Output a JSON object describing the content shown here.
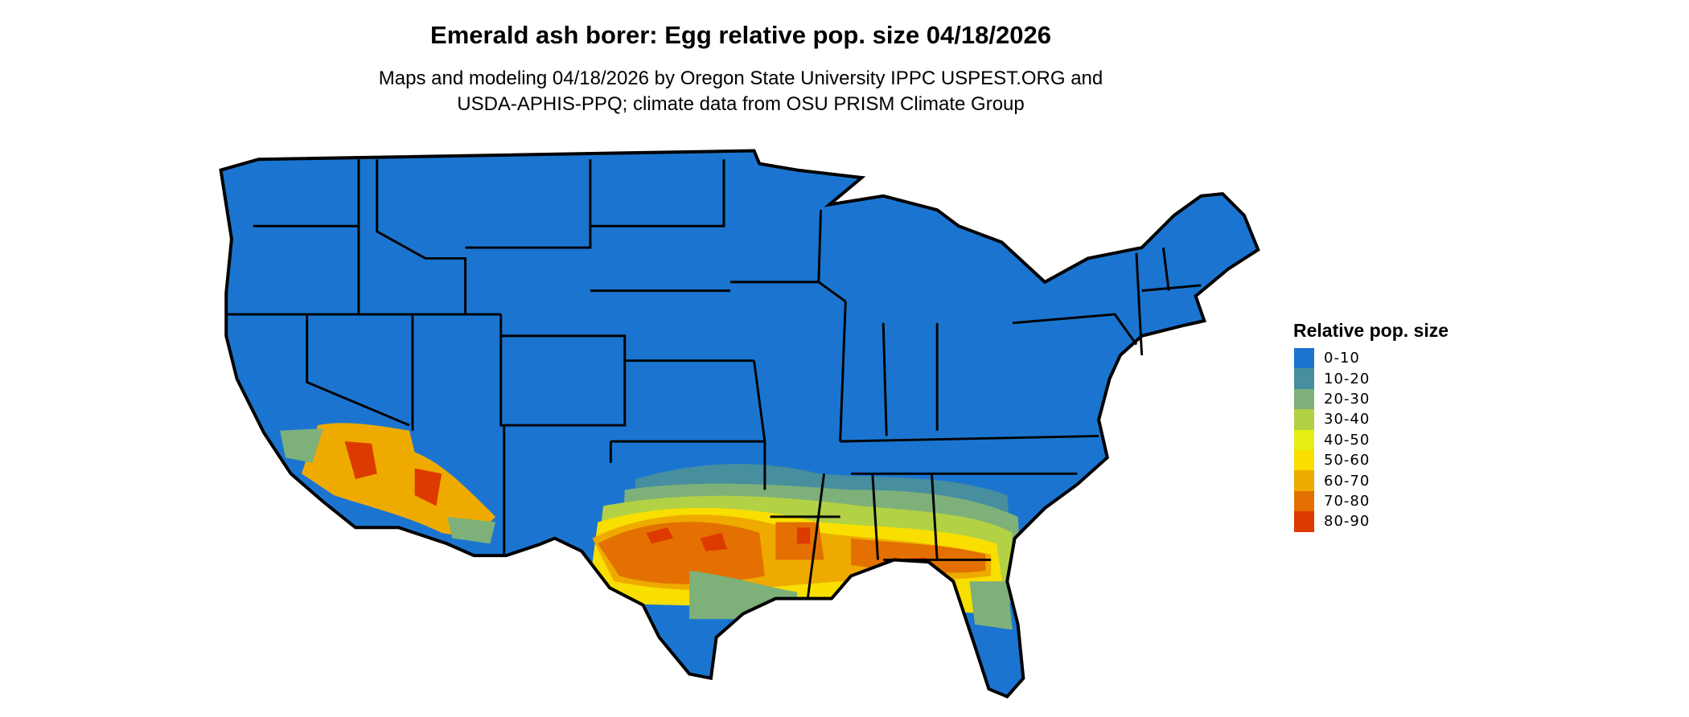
{
  "title": "Emerald ash borer: Egg relative pop. size 04/18/2026",
  "subtitle_lines": [
    "Maps and modeling 04/18/2026 by Oregon State University IPPC USPEST.ORG and",
    "USDA-APHIS-PPQ; climate data from OSU PRISM Climate Group"
  ],
  "legend": {
    "title": "Relative pop. size",
    "items": [
      {
        "label": "0-10",
        "color": "#1b75d0"
      },
      {
        "label": "10-20",
        "color": "#478e9e"
      },
      {
        "label": "20-30",
        "color": "#7eb07a"
      },
      {
        "label": "30-40",
        "color": "#b2d145"
      },
      {
        "label": "40-50",
        "color": "#e6ef14"
      },
      {
        "label": "50-60",
        "color": "#f8df00"
      },
      {
        "label": "60-70",
        "color": "#efaa00"
      },
      {
        "label": "70-80",
        "color": "#e37000"
      },
      {
        "label": "80-90",
        "color": "#dd3a00"
      }
    ]
  },
  "map": {
    "region": "Contiguous United States",
    "base_class": "0-10",
    "high_value_regions": [
      "Southern Arizona",
      "Southern California deserts",
      "Texas",
      "Louisiana",
      "Mississippi",
      "Alabama",
      "Georgia",
      "Northern Florida"
    ]
  }
}
